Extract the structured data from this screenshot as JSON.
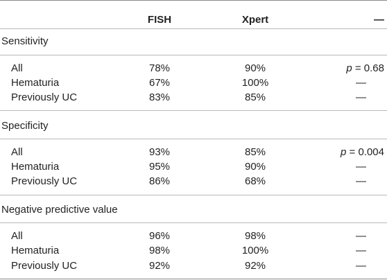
{
  "header": {
    "label": "",
    "fish": "FISH",
    "xpert": "Xpert",
    "extra": "—"
  },
  "sections": [
    {
      "title": "Sensitivity",
      "rows": [
        {
          "label": "All",
          "fish": "78%",
          "xpert": "90%",
          "p_prefix": "p",
          "p_value": " = 0.68"
        },
        {
          "label": "Hematuria",
          "fish": "67%",
          "xpert": "100%",
          "dash": "—"
        },
        {
          "label": "Previously UC",
          "fish": "83%",
          "xpert": "85%",
          "dash": "—"
        }
      ]
    },
    {
      "title": "Specificity",
      "rows": [
        {
          "label": "All",
          "fish": "93%",
          "xpert": "85%",
          "p_prefix": "p",
          "p_value": " = 0.004"
        },
        {
          "label": "Hematuria",
          "fish": "95%",
          "xpert": "90%",
          "dash": "—"
        },
        {
          "label": "Previously UC",
          "fish": "86%",
          "xpert": "68%",
          "dash": "—"
        }
      ]
    },
    {
      "title": "Negative predictive value",
      "rows": [
        {
          "label": "All",
          "fish": "96%",
          "xpert": "98%",
          "dash": "—"
        },
        {
          "label": "Hematuria",
          "fish": "98%",
          "xpert": "100%",
          "dash": "—"
        },
        {
          "label": "Previously UC",
          "fish": "92%",
          "xpert": "92%",
          "dash": "—"
        }
      ]
    }
  ]
}
